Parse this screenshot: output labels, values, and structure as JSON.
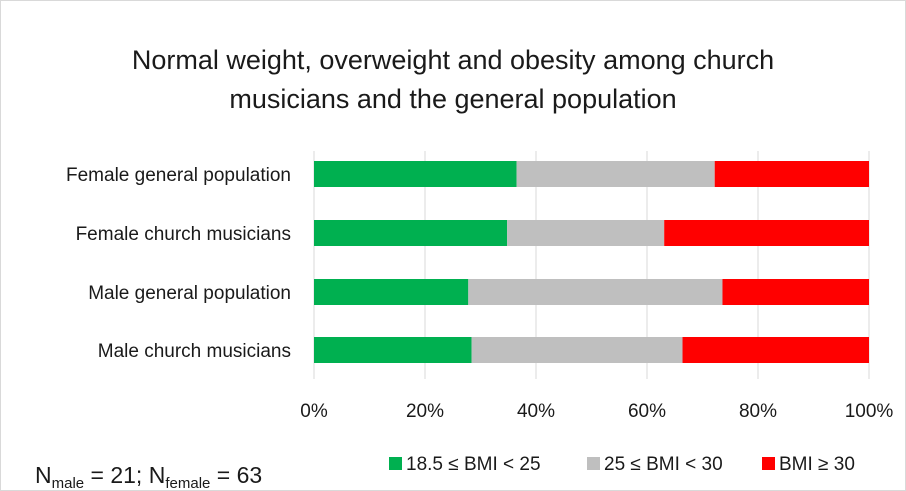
{
  "chart_data": {
    "type": "bar",
    "orientation": "horizontal",
    "stacked": true,
    "title_lines": [
      "Normal weight, overweight and obesity among church",
      "musicians and the general population"
    ],
    "categories": [
      "Female general population",
      "Female church musicians",
      "Male general population",
      "Male church musicians"
    ],
    "series": [
      {
        "name": "18.5 ≤ BMI < 25",
        "color": "#00b050",
        "values": [
          36.5,
          34.8,
          27.8,
          28.4
        ]
      },
      {
        "name": "25 ≤ BMI < 30",
        "color": "#bfbfbf",
        "values": [
          35.7,
          28.3,
          45.8,
          38.0
        ]
      },
      {
        "name": "BMI ≥ 30",
        "color": "#ff0000",
        "values": [
          27.8,
          36.9,
          26.4,
          33.6
        ]
      }
    ],
    "x_ticks": [
      "0%",
      "20%",
      "40%",
      "60%",
      "80%",
      "100%"
    ],
    "xlim": [
      0,
      100
    ],
    "grid": true,
    "gridline_color": "#d9d9d9",
    "legend_position": "bottom"
  },
  "note": {
    "n_symbol": "N",
    "male_sub": "male",
    "male_value": " = 21; ",
    "female_sub": "female",
    "female_value": " = 63"
  }
}
